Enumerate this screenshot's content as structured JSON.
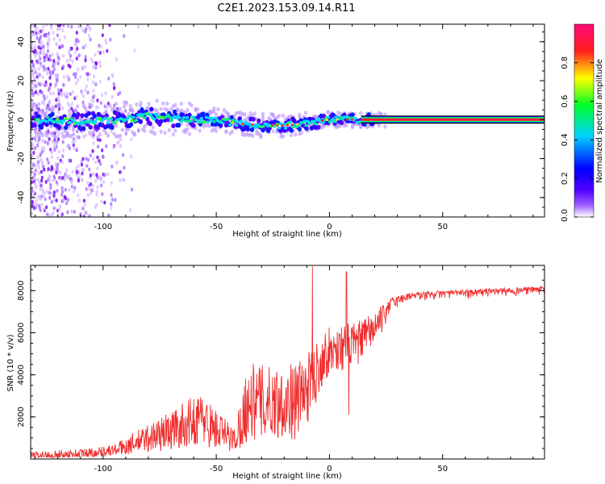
{
  "title": "C2E1.2023.153.09.14.R11",
  "chart_data": [
    {
      "type": "heatmap",
      "name": "spectrogram",
      "xlabel": "Height of straight line (km)",
      "ylabel": "Frequency (Hz)",
      "xlim": [
        -132,
        95
      ],
      "ylim": [
        -50,
        49
      ],
      "xticks": [
        -100,
        -50,
        0,
        50
      ],
      "xtick_labels": [
        "-100",
        "-50",
        "0",
        "50"
      ],
      "yticks": [
        -40,
        -20,
        0,
        20,
        40
      ],
      "ytick_labels": [
        "-40",
        "-20",
        "0",
        "20",
        "40"
      ],
      "ridge_center_hz": [
        {
          "x": -132,
          "y": 0
        },
        {
          "x": -110,
          "y": -1
        },
        {
          "x": -90,
          "y": 0
        },
        {
          "x": -80,
          "y": 2
        },
        {
          "x": -65,
          "y": 0
        },
        {
          "x": -50,
          "y": 0
        },
        {
          "x": -40,
          "y": -2
        },
        {
          "x": -30,
          "y": -3
        },
        {
          "x": -20,
          "y": -3
        },
        {
          "x": -10,
          "y": -2
        },
        {
          "x": 0,
          "y": 0
        },
        {
          "x": 10,
          "y": 0
        },
        {
          "x": 15,
          "y": 0
        },
        {
          "x": 95,
          "y": 0
        }
      ],
      "scatter_noise_extent_km": [
        -132,
        -84
      ]
    },
    {
      "type": "line",
      "name": "snr",
      "xlabel": "Height of straight line (km)",
      "ylabel": "SNR (10 * v/v)",
      "xlim": [
        -132,
        95
      ],
      "ylim": [
        0,
        9200
      ],
      "xticks": [
        -100,
        -50,
        0,
        50
      ],
      "xtick_labels": [
        "-100",
        "-50",
        "0",
        "50"
      ],
      "yticks": [
        2000,
        4000,
        6000,
        8000
      ],
      "ytick_labels": [
        "2000",
        "4000",
        "6000",
        "8000"
      ],
      "line_color": "#ee2e2e",
      "envelope": [
        {
          "x": -132,
          "lo": 50,
          "hi": 350
        },
        {
          "x": -110,
          "lo": 80,
          "hi": 500
        },
        {
          "x": -95,
          "lo": 150,
          "hi": 700
        },
        {
          "x": -80,
          "lo": 300,
          "hi": 1700
        },
        {
          "x": -70,
          "lo": 400,
          "hi": 2300
        },
        {
          "x": -57,
          "lo": 700,
          "hi": 3200
        },
        {
          "x": -50,
          "lo": 400,
          "hi": 2400
        },
        {
          "x": -42,
          "lo": 300,
          "hi": 1500
        },
        {
          "x": -36,
          "lo": 800,
          "hi": 4600
        },
        {
          "x": -25,
          "lo": 1000,
          "hi": 4400
        },
        {
          "x": -15,
          "lo": 900,
          "hi": 4600
        },
        {
          "x": -9,
          "lo": 1800,
          "hi": 5100
        },
        {
          "x": -2,
          "lo": 3800,
          "hi": 6200
        },
        {
          "x": 5,
          "lo": 4200,
          "hi": 6400
        },
        {
          "x": 12,
          "lo": 4400,
          "hi": 6500
        },
        {
          "x": 20,
          "lo": 5500,
          "hi": 7000
        },
        {
          "x": 28,
          "lo": 6800,
          "hi": 7700
        },
        {
          "x": 35,
          "lo": 7300,
          "hi": 7900
        },
        {
          "x": 50,
          "lo": 7500,
          "hi": 8000
        },
        {
          "x": 70,
          "lo": 7600,
          "hi": 8100
        },
        {
          "x": 95,
          "lo": 7700,
          "hi": 8200
        }
      ],
      "spikes": [
        {
          "x": -7.5,
          "y": 9150
        },
        {
          "x": 7.5,
          "y": 8900
        },
        {
          "x": 8.5,
          "y": 2100
        }
      ]
    }
  ],
  "colorbar": {
    "label": "Normalized spectral amplitude",
    "range": [
      0,
      1
    ],
    "ticks": [
      0.0,
      0.2,
      0.4,
      0.6,
      0.8
    ],
    "tick_labels": [
      "0.0",
      "0.2",
      "0.4",
      "0.6",
      "0.8"
    ],
    "colors": [
      "#ffffff",
      "#7a00ff",
      "#0000ff",
      "#00d2ff",
      "#00ff28",
      "#ffff00",
      "#ff2020",
      "#ff0a78"
    ]
  }
}
